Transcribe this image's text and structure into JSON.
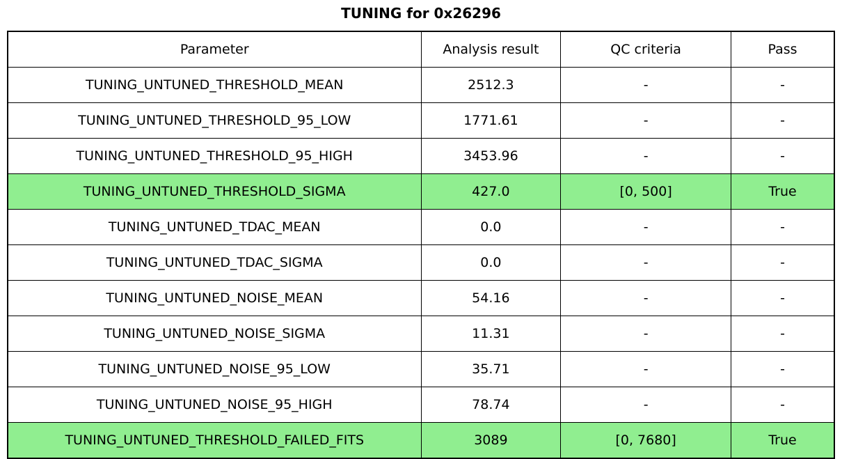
{
  "title": "TUNING for 0x26296",
  "colors": {
    "highlight_green": "#90EE90",
    "border": "#000000",
    "background": "#ffffff"
  },
  "chart_data": {
    "type": "table",
    "title": "TUNING for 0x26296",
    "columns": [
      "Parameter",
      "Analysis result",
      "QC criteria",
      "Pass"
    ],
    "rows": [
      {
        "parameter": "TUNING_UNTUNED_THRESHOLD_MEAN",
        "analysis_result": "2512.3",
        "qc_criteria": "-",
        "pass": "-",
        "highlighted": false
      },
      {
        "parameter": "TUNING_UNTUNED_THRESHOLD_95_LOW",
        "analysis_result": "1771.61",
        "qc_criteria": "-",
        "pass": "-",
        "highlighted": false
      },
      {
        "parameter": "TUNING_UNTUNED_THRESHOLD_95_HIGH",
        "analysis_result": "3453.96",
        "qc_criteria": "-",
        "pass": "-",
        "highlighted": false
      },
      {
        "parameter": "TUNING_UNTUNED_THRESHOLD_SIGMA",
        "analysis_result": "427.0",
        "qc_criteria": "[0, 500]",
        "pass": "True",
        "highlighted": true
      },
      {
        "parameter": "TUNING_UNTUNED_TDAC_MEAN",
        "analysis_result": "0.0",
        "qc_criteria": "-",
        "pass": "-",
        "highlighted": false
      },
      {
        "parameter": "TUNING_UNTUNED_TDAC_SIGMA",
        "analysis_result": "0.0",
        "qc_criteria": "-",
        "pass": "-",
        "highlighted": false
      },
      {
        "parameter": "TUNING_UNTUNED_NOISE_MEAN",
        "analysis_result": "54.16",
        "qc_criteria": "-",
        "pass": "-",
        "highlighted": false
      },
      {
        "parameter": "TUNING_UNTUNED_NOISE_SIGMA",
        "analysis_result": "11.31",
        "qc_criteria": "-",
        "pass": "-",
        "highlighted": false
      },
      {
        "parameter": "TUNING_UNTUNED_NOISE_95_LOW",
        "analysis_result": "35.71",
        "qc_criteria": "-",
        "pass": "-",
        "highlighted": false
      },
      {
        "parameter": "TUNING_UNTUNED_NOISE_95_HIGH",
        "analysis_result": "78.74",
        "qc_criteria": "-",
        "pass": "-",
        "highlighted": false
      },
      {
        "parameter": "TUNING_UNTUNED_THRESHOLD_FAILED_FITS",
        "analysis_result": "3089",
        "qc_criteria": "[0, 7680]",
        "pass": "True",
        "highlighted": true
      }
    ]
  }
}
